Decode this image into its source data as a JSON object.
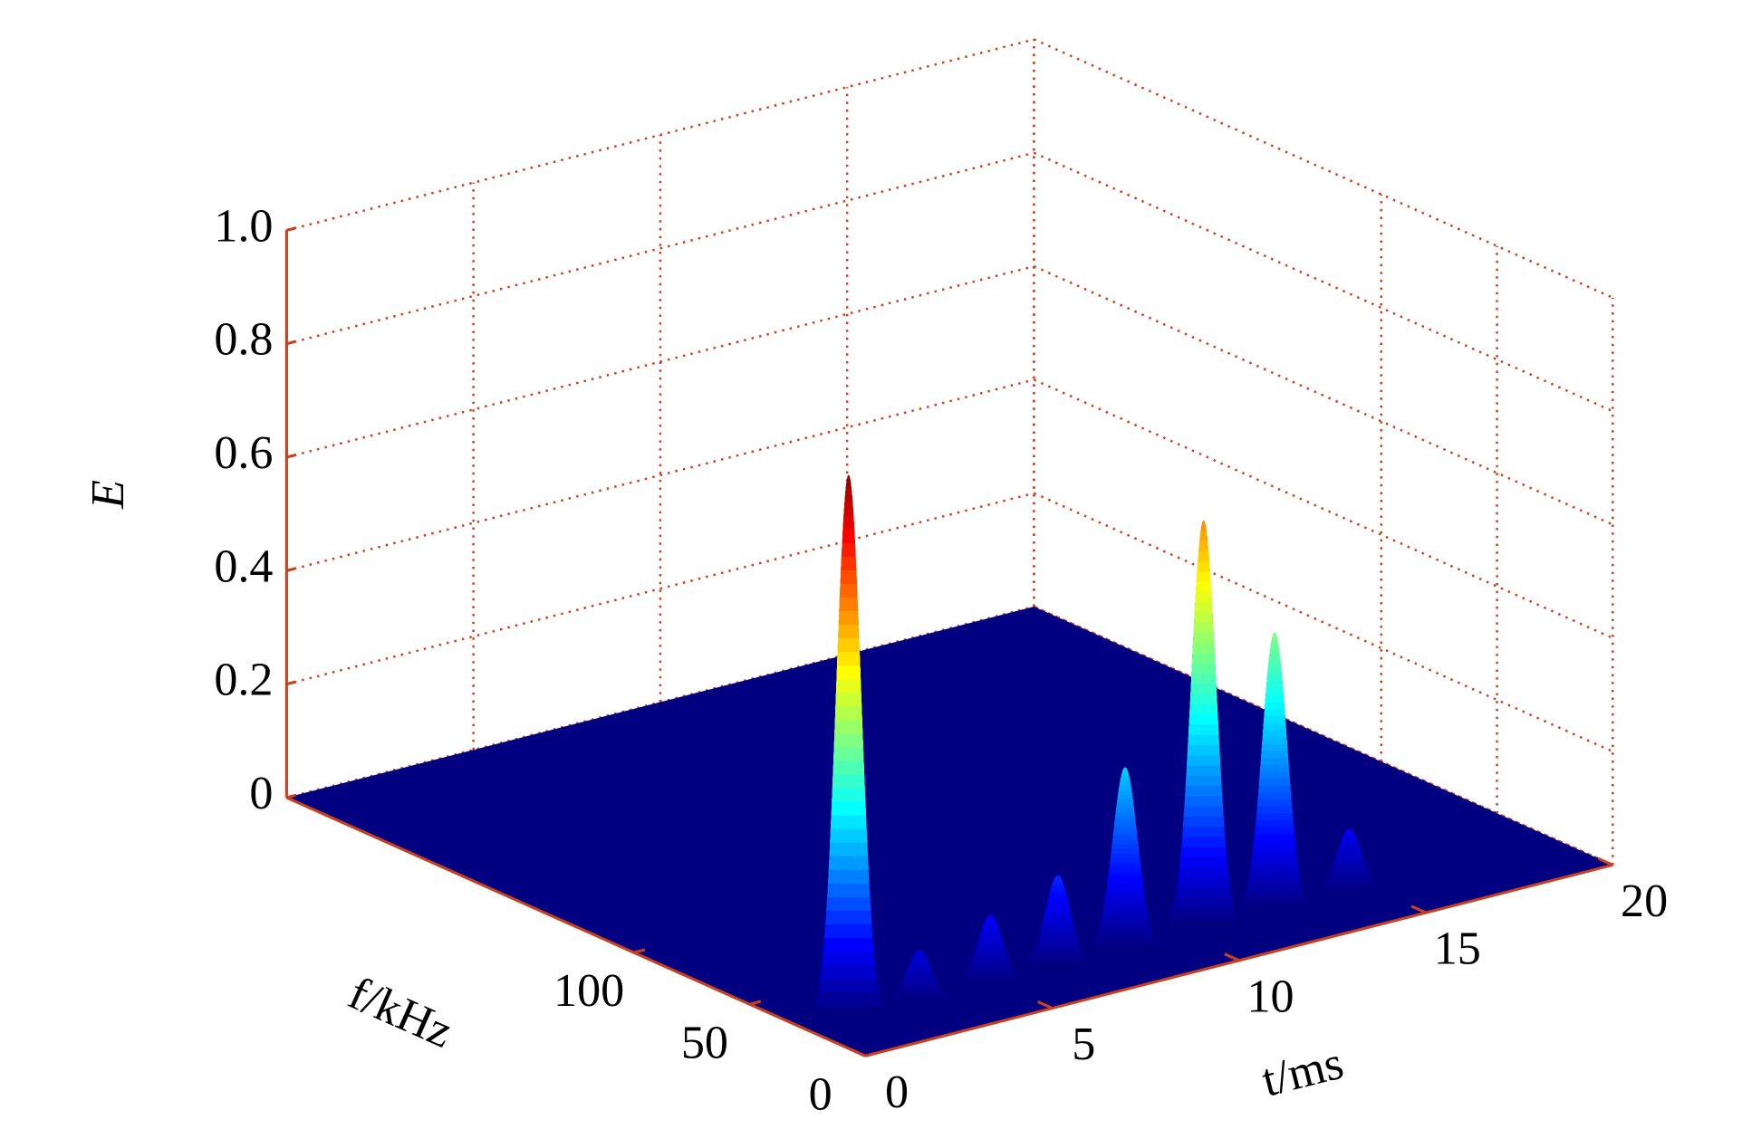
{
  "chart_data": {
    "type": "surface3d",
    "xlabel": "t/ms",
    "ylabel": "f/kHz",
    "zlabel": "E",
    "xlim": [
      0,
      20
    ],
    "xticks": [
      0,
      5,
      10,
      15,
      20
    ],
    "ylim": [
      0,
      250
    ],
    "yticks": [
      0,
      50,
      100
    ],
    "zlim": [
      0,
      1
    ],
    "zticks": [
      0,
      0.2,
      0.4,
      0.6,
      0.8,
      {
        "value": 1,
        "label": "1.0"
      }
    ],
    "grid": true,
    "grid_color": "#c8401e",
    "floor_color": "#000080",
    "colormap": "jet",
    "peaks": {
      "x": [
        1.1,
        3.0,
        4.9,
        6.7,
        8.5,
        10.6,
        12.5,
        14.5
      ],
      "y": [
        25,
        25,
        25,
        25,
        25,
        25,
        25,
        25
      ],
      "z": [
        0.96,
        0.09,
        0.12,
        0.16,
        0.32,
        0.72,
        0.49,
        0.11
      ]
    }
  }
}
